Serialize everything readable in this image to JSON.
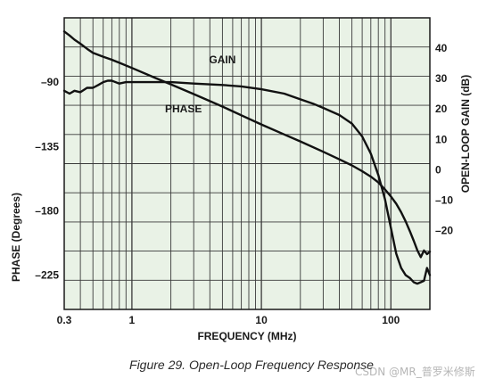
{
  "caption": "Figure 29. Open-Loop Frequency Response",
  "watermark": "CSDN @MR_普罗米修斯",
  "colors": {
    "plot_background": "#e9f2e6",
    "grid": "#3a3a3a",
    "curve": "#111111",
    "text": "#1a1a1a"
  },
  "chart_data": {
    "type": "line",
    "title": "Open-Loop Frequency Response",
    "x_axis": {
      "label": "FREQUENCY (MHz)",
      "scale": "log",
      "range": [
        0.3,
        200
      ],
      "tick_labels": [
        {
          "value": 0.3,
          "label": "0.3"
        },
        {
          "value": 1,
          "label": "1"
        },
        {
          "value": 10,
          "label": "10"
        },
        {
          "value": 100,
          "label": "100"
        }
      ]
    },
    "y_left": {
      "label": "PHASE (Degrees)",
      "range": [
        -249,
        -45
      ],
      "ticks": [
        -90,
        -135,
        -180,
        -225
      ],
      "tick_labels": [
        "–90",
        "–135",
        "–180",
        "–225"
      ]
    },
    "y_right": {
      "label": "OPEN-LOOP GAIN (dB)",
      "range": [
        -46,
        50
      ],
      "ticks": [
        40,
        30,
        20,
        10,
        0,
        -10,
        -20
      ],
      "tick_labels": [
        "40",
        "30",
        "20",
        "10",
        "0",
        "–10",
        "–20"
      ]
    },
    "grid": true,
    "series": [
      {
        "name": "GAIN",
        "axis": "right",
        "x": [
          0.3,
          0.33,
          0.36,
          0.4,
          0.45,
          0.5,
          0.6,
          0.7,
          0.8,
          1,
          1.5,
          2,
          3,
          5,
          7,
          10,
          15,
          20,
          30,
          40,
          50,
          60,
          70,
          80,
          90,
          100,
          110,
          120,
          130,
          140,
          150,
          160,
          170,
          180,
          190,
          200
        ],
        "y": [
          45.5,
          44.2,
          42.8,
          41.5,
          39.8,
          38.5,
          37.2,
          36.2,
          35.2,
          33.5,
          30.3,
          28.1,
          24.9,
          20.8,
          17.9,
          14.9,
          11.6,
          9.3,
          5.9,
          3.4,
          1.4,
          -0.5,
          -2.3,
          -4.2,
          -6.5,
          -8.8,
          -11.2,
          -14.0,
          -17.0,
          -20.2,
          -23.4,
          -26.5,
          -28.8,
          -26.6,
          -27.8,
          -27.0
        ]
      },
      {
        "name": "PHASE",
        "axis": "left",
        "x": [
          0.3,
          0.33,
          0.36,
          0.4,
          0.45,
          0.5,
          0.55,
          0.6,
          0.65,
          0.7,
          0.8,
          0.9,
          1,
          1.5,
          2,
          3,
          5,
          7,
          10,
          15,
          20,
          25,
          30,
          40,
          50,
          60,
          70,
          80,
          90,
          100,
          110,
          120,
          130,
          140,
          150,
          160,
          170,
          180,
          190,
          200
        ],
        "y": [
          -96,
          -98,
          -96,
          -97,
          -94,
          -94,
          -92,
          -90,
          -89,
          -89,
          -91,
          -90,
          -90,
          -90,
          -90,
          -91,
          -92,
          -93,
          -95,
          -98,
          -102,
          -105,
          -108,
          -113,
          -119,
          -128,
          -140,
          -155,
          -172,
          -192,
          -210,
          -220,
          -225,
          -227,
          -230,
          -231,
          -230,
          -229,
          -220,
          -225
        ]
      }
    ],
    "annotations": [
      {
        "text": "GAIN",
        "x": 5,
        "y": 35,
        "axis": "right"
      },
      {
        "text": "PHASE",
        "x": 2.5,
        "y": -111,
        "axis": "left"
      }
    ]
  }
}
